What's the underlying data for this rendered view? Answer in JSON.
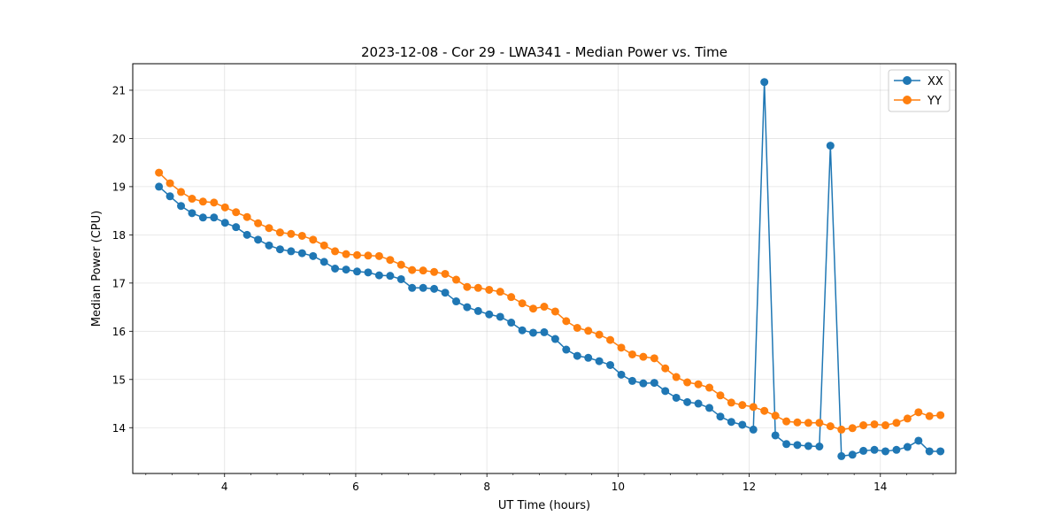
{
  "chart_data": {
    "type": "line",
    "title": "2023-12-08 - Cor 29 - LWA341 - Median Power vs. Time",
    "xlabel": "UT Time (hours)",
    "ylabel": "Median Power (CPU)",
    "xlim": [
      2.6,
      15.15
    ],
    "ylim": [
      13.05,
      21.55
    ],
    "xticks": [
      4,
      6,
      8,
      10,
      12,
      14
    ],
    "xtick_labels": [
      "4",
      "6",
      "8",
      "10",
      "12",
      "14"
    ],
    "yticks": [
      14,
      15,
      16,
      17,
      18,
      19,
      20,
      21
    ],
    "ytick_labels": [
      "14",
      "15",
      "16",
      "17",
      "18",
      "19",
      "20",
      "21"
    ],
    "grid": true,
    "legend_position": "top-right",
    "x": [
      3.0,
      3.168,
      3.336,
      3.504,
      3.671,
      3.839,
      4.007,
      4.175,
      4.343,
      4.511,
      4.678,
      4.846,
      5.014,
      5.182,
      5.35,
      5.518,
      5.685,
      5.853,
      6.021,
      6.189,
      6.357,
      6.525,
      6.692,
      6.86,
      7.028,
      7.196,
      7.364,
      7.532,
      7.699,
      7.867,
      8.035,
      8.203,
      8.371,
      8.539,
      8.706,
      8.874,
      9.042,
      9.21,
      9.378,
      9.546,
      9.713,
      9.881,
      10.049,
      10.217,
      10.385,
      10.553,
      10.72,
      10.888,
      11.056,
      11.224,
      11.392,
      11.56,
      11.727,
      11.895,
      12.063,
      12.231,
      12.399,
      12.567,
      12.734,
      12.902,
      13.07,
      13.238,
      13.406,
      13.574,
      13.741,
      13.909,
      14.077,
      14.245,
      14.413,
      14.581,
      14.748,
      14.916
    ],
    "series": [
      {
        "name": "XX",
        "color": "#1f77b4",
        "marker": "circle",
        "values": [
          19.0,
          18.8,
          18.6,
          18.45,
          18.36,
          18.36,
          18.25,
          18.16,
          18.0,
          17.9,
          17.78,
          17.7,
          17.66,
          17.62,
          17.56,
          17.44,
          17.3,
          17.28,
          17.24,
          17.22,
          17.16,
          17.15,
          17.08,
          16.9,
          16.9,
          16.88,
          16.8,
          16.62,
          16.5,
          16.42,
          16.35,
          16.3,
          16.18,
          16.02,
          15.97,
          15.98,
          15.84,
          15.62,
          15.49,
          15.45,
          15.38,
          15.3,
          15.1,
          14.97,
          14.92,
          14.93,
          14.76,
          14.62,
          14.53,
          14.5,
          14.41,
          14.23,
          14.12,
          14.06,
          13.96,
          21.17,
          13.84,
          13.66,
          13.64,
          13.62,
          13.61,
          19.85,
          13.41,
          13.44,
          13.52,
          13.54,
          13.51,
          13.54,
          13.6,
          13.73,
          13.51,
          13.51
        ]
      },
      {
        "name": "YY",
        "color": "#ff7f0e",
        "marker": "circle",
        "values": [
          19.29,
          19.07,
          18.89,
          18.75,
          18.69,
          18.67,
          18.57,
          18.47,
          18.37,
          18.24,
          18.14,
          18.05,
          18.02,
          17.98,
          17.9,
          17.78,
          17.66,
          17.6,
          17.58,
          17.57,
          17.56,
          17.48,
          17.38,
          17.27,
          17.26,
          17.23,
          17.19,
          17.07,
          16.92,
          16.9,
          16.86,
          16.82,
          16.71,
          16.58,
          16.47,
          16.51,
          16.41,
          16.21,
          16.07,
          16.01,
          15.93,
          15.82,
          15.66,
          15.52,
          15.47,
          15.44,
          15.23,
          15.05,
          14.94,
          14.9,
          14.83,
          14.67,
          14.52,
          14.47,
          14.43,
          14.35,
          14.25,
          14.13,
          14.11,
          14.1,
          14.1,
          14.03,
          13.96,
          13.99,
          14.05,
          14.07,
          14.05,
          14.1,
          14.19,
          14.32,
          14.24,
          14.26
        ]
      }
    ]
  }
}
